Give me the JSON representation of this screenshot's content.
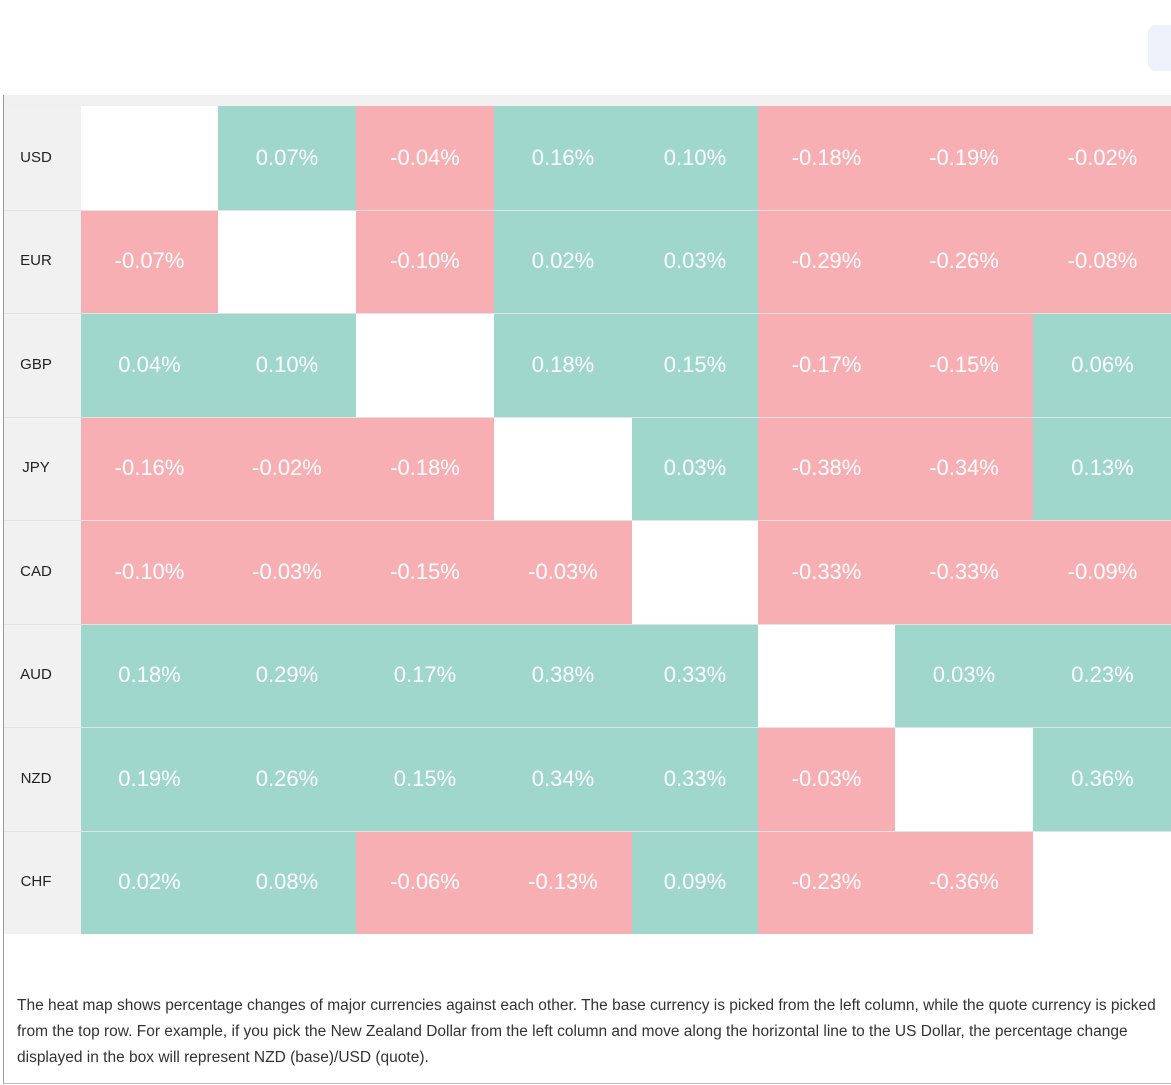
{
  "colors": {
    "positive": "#9fd7cd",
    "negative": "#f8afb4",
    "empty": "#ffffff"
  },
  "rows": [
    {
      "label": "USD",
      "values": [
        "",
        "0.07%",
        "-0.04%",
        "0.16%",
        "0.10%",
        "-0.18%",
        "-0.19%",
        "-0.02%"
      ]
    },
    {
      "label": "EUR",
      "values": [
        "-0.07%",
        "",
        "-0.10%",
        "0.02%",
        "0.03%",
        "-0.29%",
        "-0.26%",
        "-0.08%"
      ]
    },
    {
      "label": "GBP",
      "values": [
        "0.04%",
        "0.10%",
        "",
        "0.18%",
        "0.15%",
        "-0.17%",
        "-0.15%",
        "0.06%"
      ]
    },
    {
      "label": "JPY",
      "values": [
        "-0.16%",
        "-0.02%",
        "-0.18%",
        "",
        "0.03%",
        "-0.38%",
        "-0.34%",
        "0.13%"
      ]
    },
    {
      "label": "CAD",
      "values": [
        "-0.10%",
        "-0.03%",
        "-0.15%",
        "-0.03%",
        "",
        "-0.33%",
        "-0.33%",
        "-0.09%"
      ]
    },
    {
      "label": "AUD",
      "values": [
        "0.18%",
        "0.29%",
        "0.17%",
        "0.38%",
        "0.33%",
        "",
        "0.03%",
        "0.23%"
      ]
    },
    {
      "label": "NZD",
      "values": [
        "0.19%",
        "0.26%",
        "0.15%",
        "0.34%",
        "0.33%",
        "-0.03%",
        "",
        "0.36%"
      ]
    },
    {
      "label": "CHF",
      "values": [
        "0.02%",
        "0.08%",
        "-0.06%",
        "-0.13%",
        "0.09%",
        "-0.23%",
        "-0.36%",
        ""
      ]
    }
  ],
  "description": "The heat map shows percentage changes of major currencies against each other. The base currency is picked from the left column, while the quote currency is picked from the top row. For example, if you pick the New Zealand Dollar from the left column and move along the horizontal line to the US Dollar, the percentage change displayed in the box will represent NZD (base)/USD (quote)."
}
